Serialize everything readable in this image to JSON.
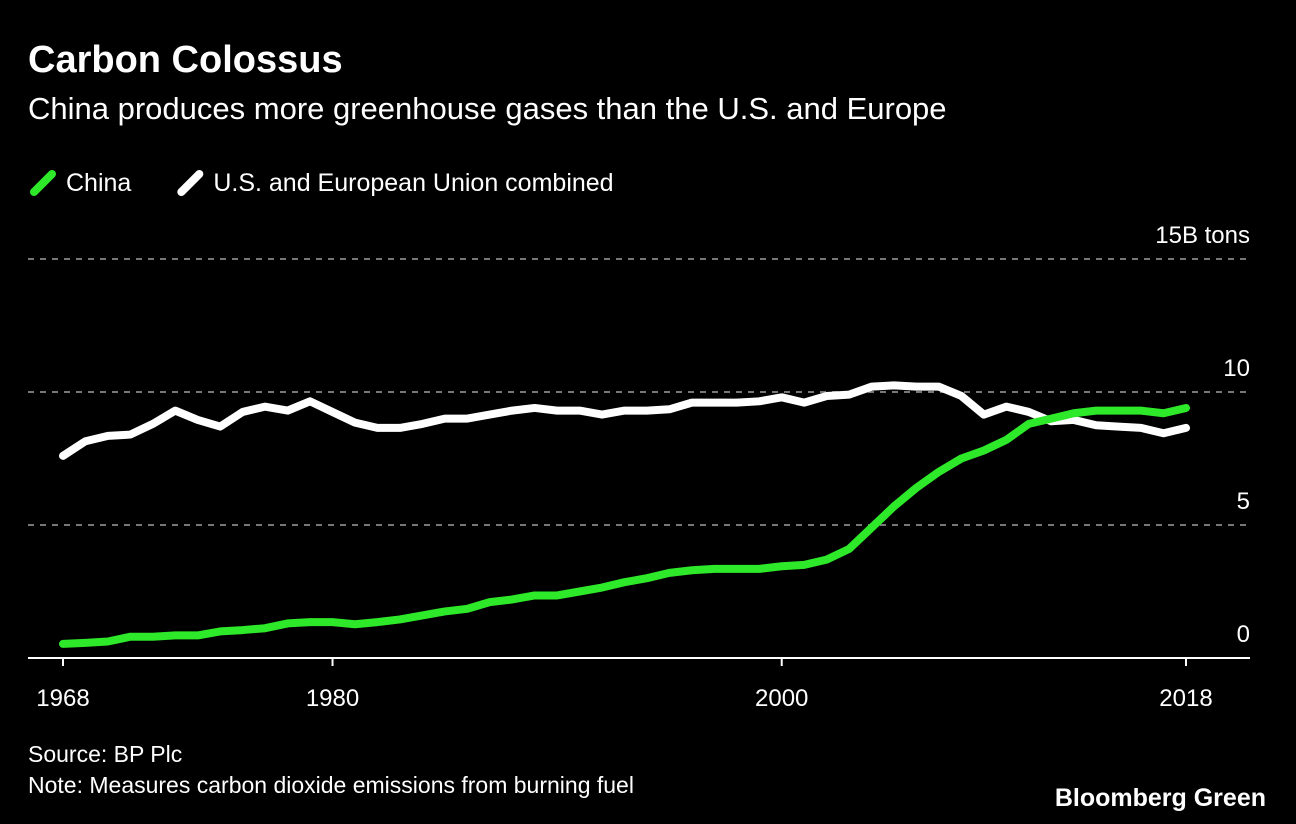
{
  "chart_data": {
    "type": "line",
    "title": "Carbon Colossus",
    "subtitle": "China produces more greenhouse gases than the U.S. and Europe",
    "source": "Source: BP Plc",
    "note": "Note: Measures carbon dioxide emissions from burning fuel",
    "branding": "Bloomberg Green",
    "x": [
      1968,
      1969,
      1970,
      1971,
      1972,
      1973,
      1974,
      1975,
      1976,
      1977,
      1978,
      1979,
      1980,
      1981,
      1982,
      1983,
      1984,
      1985,
      1986,
      1987,
      1988,
      1989,
      1990,
      1991,
      1992,
      1993,
      1994,
      1995,
      1996,
      1997,
      1998,
      1999,
      2000,
      2001,
      2002,
      2003,
      2004,
      2005,
      2006,
      2007,
      2008,
      2009,
      2010,
      2011,
      2012,
      2013,
      2014,
      2015,
      2016,
      2017,
      2018
    ],
    "series": [
      {
        "name": "China",
        "color": "#2ee82a",
        "values": [
          0.53,
          0.57,
          0.62,
          0.8,
          0.8,
          0.85,
          0.85,
          1.0,
          1.05,
          1.12,
          1.3,
          1.35,
          1.35,
          1.27,
          1.35,
          1.45,
          1.6,
          1.75,
          1.85,
          2.1,
          2.2,
          2.35,
          2.35,
          2.5,
          2.65,
          2.85,
          3.0,
          3.2,
          3.3,
          3.35,
          3.35,
          3.35,
          3.45,
          3.5,
          3.7,
          4.1,
          4.9,
          5.7,
          6.4,
          7.0,
          7.5,
          7.8,
          8.2,
          8.8,
          9.0,
          9.2,
          9.3,
          9.3,
          9.3,
          9.2,
          9.4
        ]
      },
      {
        "name": "U.S. and European Union combined",
        "color": "#ffffff",
        "values": [
          7.6,
          8.15,
          8.35,
          8.4,
          8.8,
          9.3,
          8.95,
          8.7,
          9.25,
          9.45,
          9.3,
          9.65,
          9.25,
          8.85,
          8.65,
          8.65,
          8.8,
          9.0,
          9.0,
          9.15,
          9.3,
          9.4,
          9.3,
          9.3,
          9.15,
          9.3,
          9.3,
          9.35,
          9.6,
          9.6,
          9.6,
          9.65,
          9.8,
          9.6,
          9.85,
          9.9,
          10.2,
          10.25,
          10.2,
          10.2,
          9.85,
          9.15,
          9.45,
          9.25,
          8.9,
          8.95,
          8.75,
          8.7,
          8.65,
          8.45,
          8.65
        ]
      }
    ],
    "xlim": [
      1968,
      2018
    ],
    "xticks": [
      1968,
      1980,
      2000,
      2018
    ],
    "ylim": [
      0,
      15
    ],
    "yticks": [
      0,
      5,
      10,
      {
        "value": 15,
        "label": "15B tons"
      }
    ],
    "grid": true
  }
}
